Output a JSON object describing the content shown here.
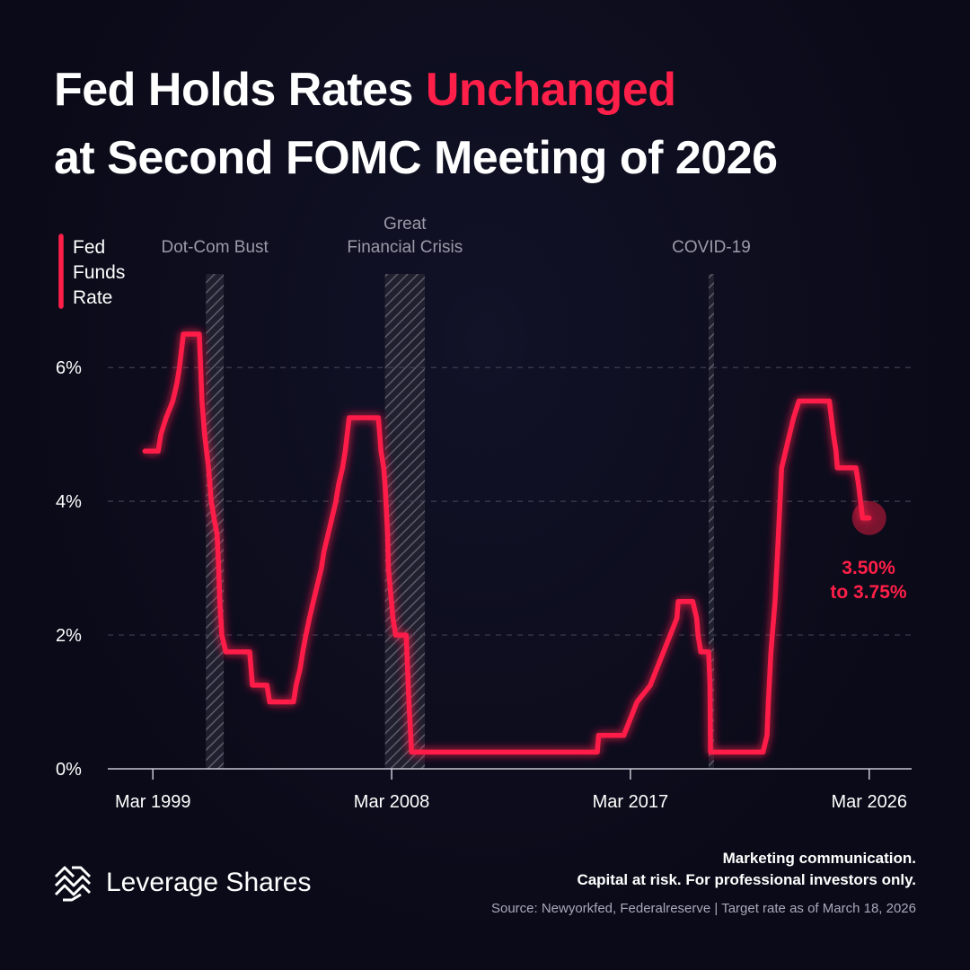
{
  "title": {
    "line1_prefix": "Fed Holds Rates ",
    "line1_accent": "Unchanged",
    "line2": "at Second FOMC Meeting of 2026"
  },
  "chart_data": {
    "type": "line",
    "title": "Fed Holds Rates Unchanged at Second FOMC Meeting of 2026",
    "series": [
      {
        "name": "Fed Funds Rate",
        "color": "#ff1f48",
        "points": [
          [
            1998.9,
            4.75
          ],
          [
            1999.4,
            4.75
          ],
          [
            1999.5,
            5.0
          ],
          [
            1999.7,
            5.25
          ],
          [
            1999.95,
            5.5
          ],
          [
            2000.1,
            5.75
          ],
          [
            2000.2,
            6.0
          ],
          [
            2000.35,
            6.5
          ],
          [
            2000.95,
            6.5
          ],
          [
            2001.05,
            5.5
          ],
          [
            2001.15,
            5.0
          ],
          [
            2001.3,
            4.5
          ],
          [
            2001.4,
            4.0
          ],
          [
            2001.5,
            3.75
          ],
          [
            2001.62,
            3.5
          ],
          [
            2001.68,
            3.0
          ],
          [
            2001.72,
            2.5
          ],
          [
            2001.8,
            2.0
          ],
          [
            2001.95,
            1.75
          ],
          [
            2002.85,
            1.75
          ],
          [
            2002.95,
            1.25
          ],
          [
            2003.5,
            1.25
          ],
          [
            2003.6,
            1.0
          ],
          [
            2004.5,
            1.0
          ],
          [
            2004.6,
            1.25
          ],
          [
            2004.75,
            1.5
          ],
          [
            2004.85,
            1.75
          ],
          [
            2004.97,
            2.0
          ],
          [
            2005.1,
            2.25
          ],
          [
            2005.25,
            2.5
          ],
          [
            2005.4,
            2.75
          ],
          [
            2005.55,
            3.0
          ],
          [
            2005.65,
            3.25
          ],
          [
            2005.8,
            3.5
          ],
          [
            2005.95,
            3.75
          ],
          [
            2006.1,
            4.0
          ],
          [
            2006.2,
            4.25
          ],
          [
            2006.35,
            4.5
          ],
          [
            2006.45,
            4.75
          ],
          [
            2006.6,
            5.25
          ],
          [
            2007.7,
            5.25
          ],
          [
            2007.8,
            4.75
          ],
          [
            2007.9,
            4.5
          ],
          [
            2007.95,
            4.25
          ],
          [
            2008.05,
            3.5
          ],
          [
            2008.08,
            3.0
          ],
          [
            2008.25,
            2.25
          ],
          [
            2008.35,
            2.0
          ],
          [
            2008.75,
            2.0
          ],
          [
            2008.8,
            1.5
          ],
          [
            2008.85,
            1.0
          ],
          [
            2008.95,
            0.25
          ],
          [
            2015.95,
            0.25
          ],
          [
            2016.0,
            0.5
          ],
          [
            2016.95,
            0.5
          ],
          [
            2017.2,
            0.75
          ],
          [
            2017.45,
            1.0
          ],
          [
            2017.95,
            1.25
          ],
          [
            2018.2,
            1.5
          ],
          [
            2018.45,
            1.75
          ],
          [
            2018.7,
            2.0
          ],
          [
            2018.95,
            2.25
          ],
          [
            2019.0,
            2.5
          ],
          [
            2019.55,
            2.5
          ],
          [
            2019.7,
            2.25
          ],
          [
            2019.75,
            2.0
          ],
          [
            2019.85,
            1.75
          ],
          [
            2020.15,
            1.75
          ],
          [
            2020.2,
            1.25
          ],
          [
            2020.22,
            0.25
          ],
          [
            2022.2,
            0.25
          ],
          [
            2022.35,
            0.5
          ],
          [
            2022.4,
            1.0
          ],
          [
            2022.5,
            1.75
          ],
          [
            2022.65,
            2.5
          ],
          [
            2022.75,
            3.25
          ],
          [
            2022.9,
            4.5
          ],
          [
            2023.05,
            4.75
          ],
          [
            2023.2,
            5.0
          ],
          [
            2023.35,
            5.25
          ],
          [
            2023.55,
            5.5
          ],
          [
            2024.7,
            5.5
          ],
          [
            2024.85,
            5.0
          ],
          [
            2024.95,
            4.75
          ],
          [
            2025.0,
            4.5
          ],
          [
            2025.7,
            4.5
          ],
          [
            2025.8,
            4.25
          ],
          [
            2025.95,
            3.75
          ],
          [
            2026.2,
            3.75
          ]
        ]
      }
    ],
    "legend": {
      "lines": [
        "Fed",
        "Funds",
        "Rate"
      ],
      "placement": "top-left"
    },
    "x_axis": {
      "range": [
        1997.5,
        2027.8
      ],
      "ticks": [
        {
          "value": 1999.2,
          "label": "Mar 1999"
        },
        {
          "value": 2008.2,
          "label": "Mar 2008"
        },
        {
          "value": 2017.2,
          "label": "Mar 2017"
        },
        {
          "value": 2026.2,
          "label": "Mar 2026"
        }
      ]
    },
    "y_axis": {
      "range": [
        0,
        6.5
      ],
      "ticks": [
        {
          "value": 0,
          "label": "0%"
        },
        {
          "value": 2,
          "label": "2%"
        },
        {
          "value": 4,
          "label": "4%"
        },
        {
          "value": 6,
          "label": "6%"
        }
      ],
      "grid": true
    },
    "recessions": [
      {
        "label_lines": [
          "Dot-Com Bust"
        ],
        "start": 2001.2,
        "end": 2001.87
      },
      {
        "label_lines": [
          "Great",
          "Financial Crisis"
        ],
        "start": 2007.95,
        "end": 2009.45
      },
      {
        "label_lines": [
          "COVID-19"
        ],
        "start": 2020.15,
        "end": 2020.35
      }
    ],
    "highlight": {
      "x": 2026.2,
      "y": 3.75,
      "label_lines": [
        "3.50%",
        "to 3.75%"
      ]
    }
  },
  "footer": {
    "brand": "Leverage Shares",
    "logo_icon": "leverage-shares-logo-icon",
    "disclaimer_line1": "Marketing communication.",
    "disclaimer_line2": "Capital at risk. For professional investors only.",
    "source": "Source: Newyorkfed, Federalreserve | Target rate as of March 18, 2026"
  }
}
